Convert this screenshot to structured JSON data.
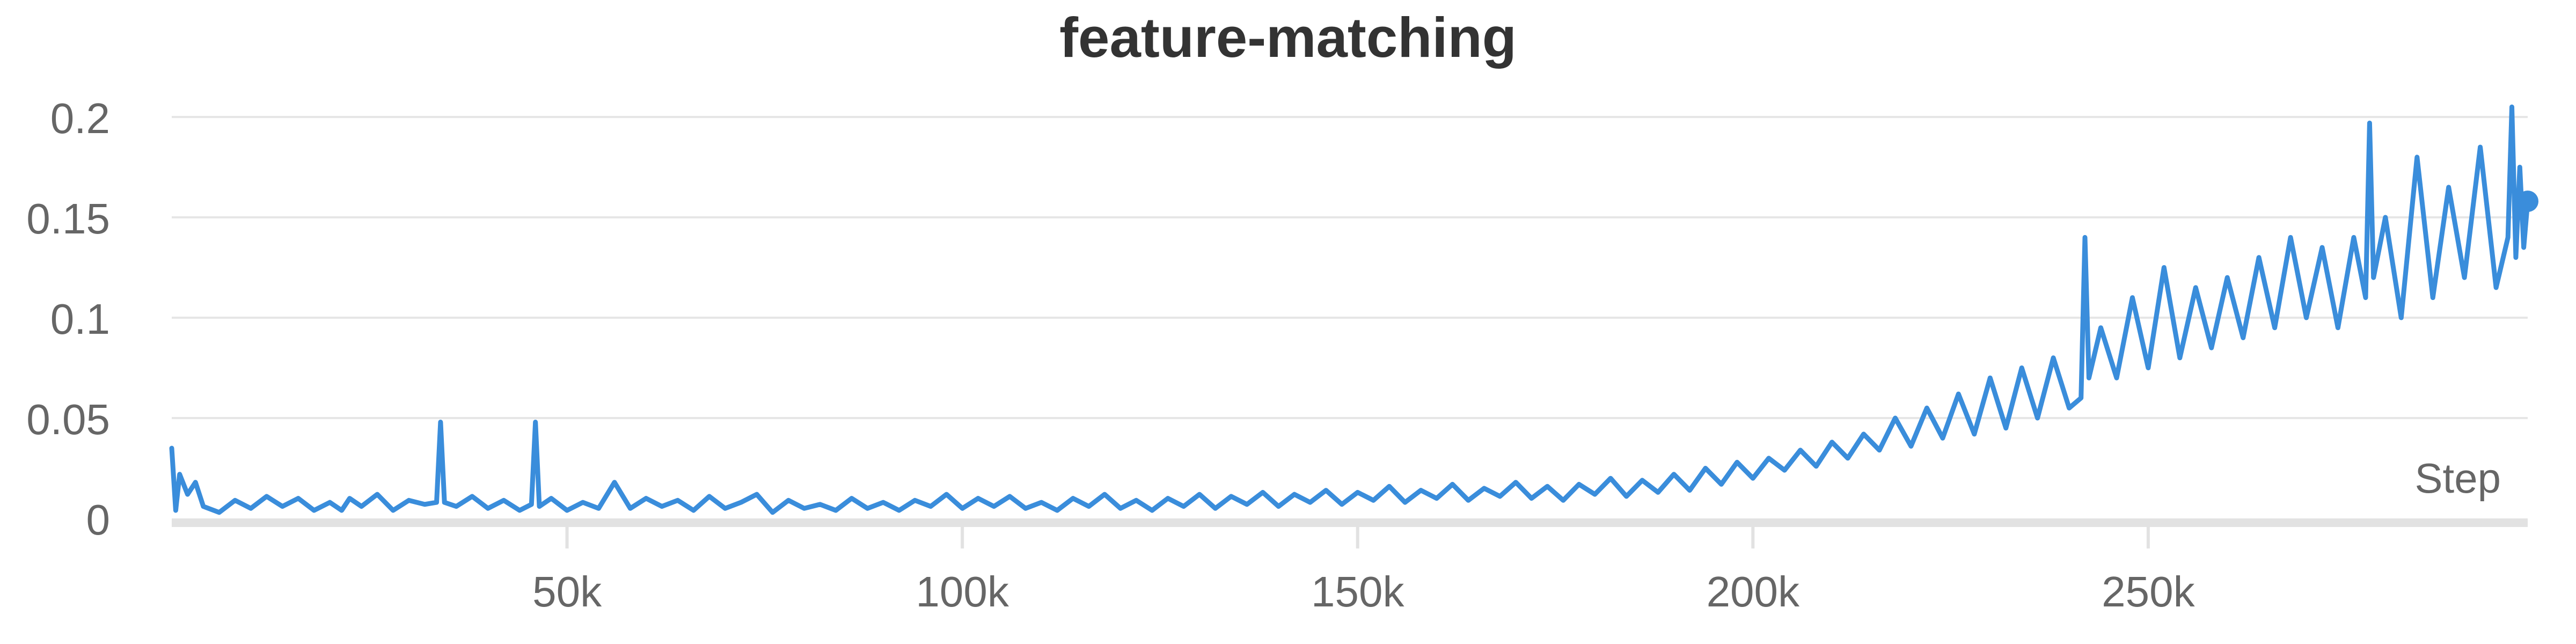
{
  "chart_data": {
    "type": "line",
    "title": "feature-matching",
    "xlabel": "Step",
    "ylabel": "",
    "xlim": [
      0,
      298000
    ],
    "ylim": [
      0,
      0.2
    ],
    "xticks": [
      50000,
      100000,
      150000,
      200000,
      250000
    ],
    "xtick_labels": [
      "50k",
      "100k",
      "150k",
      "200k",
      "250k"
    ],
    "yticks": [
      0,
      0.05,
      0.1,
      0.15,
      0.2
    ],
    "ytick_labels": [
      "0",
      "0.05",
      "0.1",
      "0.15",
      "0.2"
    ],
    "grid": true,
    "colors": {
      "line": "#3a8ddb",
      "grid": "#e6e6e6",
      "axis": "#e2e2e2",
      "text": "#666666",
      "title": "#333333"
    },
    "series": [
      {
        "values": [
          [
            0,
            0.035
          ],
          [
            500,
            0.004
          ],
          [
            1000,
            0.022
          ],
          [
            2000,
            0.012
          ],
          [
            3000,
            0.018
          ],
          [
            4000,
            0.006
          ],
          [
            6000,
            0.003
          ],
          [
            8000,
            0.009
          ],
          [
            10000,
            0.005
          ],
          [
            12000,
            0.011
          ],
          [
            14000,
            0.006
          ],
          [
            16000,
            0.01
          ],
          [
            18000,
            0.004
          ],
          [
            20000,
            0.008
          ],
          [
            21500,
            0.004
          ],
          [
            22500,
            0.01
          ],
          [
            24000,
            0.006
          ],
          [
            26000,
            0.012
          ],
          [
            28000,
            0.004
          ],
          [
            30000,
            0.009
          ],
          [
            32000,
            0.007
          ],
          [
            33500,
            0.008
          ],
          [
            34000,
            0.048
          ],
          [
            34500,
            0.008
          ],
          [
            36000,
            0.006
          ],
          [
            38000,
            0.011
          ],
          [
            40000,
            0.005
          ],
          [
            42000,
            0.009
          ],
          [
            44000,
            0.004
          ],
          [
            45500,
            0.007
          ],
          [
            46000,
            0.048
          ],
          [
            46500,
            0.006
          ],
          [
            48000,
            0.01
          ],
          [
            50000,
            0.004
          ],
          [
            52000,
            0.008
          ],
          [
            54000,
            0.005
          ],
          [
            56000,
            0.018
          ],
          [
            58000,
            0.005
          ],
          [
            60000,
            0.01
          ],
          [
            62000,
            0.006
          ],
          [
            64000,
            0.009
          ],
          [
            66000,
            0.004
          ],
          [
            68000,
            0.011
          ],
          [
            70000,
            0.005
          ],
          [
            72000,
            0.008
          ],
          [
            74000,
            0.012
          ],
          [
            76000,
            0.003
          ],
          [
            78000,
            0.009
          ],
          [
            80000,
            0.005
          ],
          [
            82000,
            0.007
          ],
          [
            84000,
            0.004
          ],
          [
            86000,
            0.01
          ],
          [
            88000,
            0.005
          ],
          [
            90000,
            0.008
          ],
          [
            92000,
            0.004
          ],
          [
            94000,
            0.009
          ],
          [
            96000,
            0.006
          ],
          [
            98000,
            0.012
          ],
          [
            100000,
            0.005
          ],
          [
            102000,
            0.01
          ],
          [
            104000,
            0.006
          ],
          [
            106000,
            0.011
          ],
          [
            108000,
            0.005
          ],
          [
            110000,
            0.008
          ],
          [
            112000,
            0.004
          ],
          [
            114000,
            0.01
          ],
          [
            116000,
            0.006
          ],
          [
            118000,
            0.012
          ],
          [
            120000,
            0.005
          ],
          [
            122000,
            0.009
          ],
          [
            124000,
            0.004
          ],
          [
            126000,
            0.01
          ],
          [
            128000,
            0.006
          ],
          [
            130000,
            0.012
          ],
          [
            132000,
            0.005
          ],
          [
            134000,
            0.011
          ],
          [
            136000,
            0.007
          ],
          [
            138000,
            0.013
          ],
          [
            140000,
            0.006
          ],
          [
            142000,
            0.012
          ],
          [
            144000,
            0.008
          ],
          [
            146000,
            0.014
          ],
          [
            148000,
            0.007
          ],
          [
            150000,
            0.013
          ],
          [
            152000,
            0.009
          ],
          [
            154000,
            0.016
          ],
          [
            156000,
            0.008
          ],
          [
            158000,
            0.014
          ],
          [
            160000,
            0.01
          ],
          [
            162000,
            0.017
          ],
          [
            164000,
            0.009
          ],
          [
            166000,
            0.015
          ],
          [
            168000,
            0.011
          ],
          [
            170000,
            0.018
          ],
          [
            172000,
            0.01
          ],
          [
            174000,
            0.016
          ],
          [
            176000,
            0.009
          ],
          [
            178000,
            0.017
          ],
          [
            180000,
            0.012
          ],
          [
            182000,
            0.02
          ],
          [
            184000,
            0.011
          ],
          [
            186000,
            0.019
          ],
          [
            188000,
            0.013
          ],
          [
            190000,
            0.022
          ],
          [
            192000,
            0.014
          ],
          [
            194000,
            0.025
          ],
          [
            196000,
            0.017
          ],
          [
            198000,
            0.028
          ],
          [
            200000,
            0.02
          ],
          [
            202000,
            0.03
          ],
          [
            204000,
            0.024
          ],
          [
            206000,
            0.034
          ],
          [
            208000,
            0.026
          ],
          [
            210000,
            0.038
          ],
          [
            212000,
            0.03
          ],
          [
            214000,
            0.042
          ],
          [
            216000,
            0.034
          ],
          [
            218000,
            0.05
          ],
          [
            220000,
            0.036
          ],
          [
            222000,
            0.055
          ],
          [
            224000,
            0.04
          ],
          [
            226000,
            0.062
          ],
          [
            228000,
            0.042
          ],
          [
            230000,
            0.07
          ],
          [
            232000,
            0.045
          ],
          [
            234000,
            0.075
          ],
          [
            236000,
            0.05
          ],
          [
            238000,
            0.08
          ],
          [
            240000,
            0.055
          ],
          [
            241500,
            0.06
          ],
          [
            242000,
            0.14
          ],
          [
            242500,
            0.07
          ],
          [
            244000,
            0.095
          ],
          [
            246000,
            0.07
          ],
          [
            248000,
            0.11
          ],
          [
            250000,
            0.075
          ],
          [
            252000,
            0.125
          ],
          [
            254000,
            0.08
          ],
          [
            256000,
            0.115
          ],
          [
            258000,
            0.085
          ],
          [
            260000,
            0.12
          ],
          [
            262000,
            0.09
          ],
          [
            264000,
            0.13
          ],
          [
            266000,
            0.095
          ],
          [
            268000,
            0.14
          ],
          [
            270000,
            0.1
          ],
          [
            272000,
            0.135
          ],
          [
            274000,
            0.095
          ],
          [
            276000,
            0.14
          ],
          [
            277500,
            0.11
          ],
          [
            278000,
            0.197
          ],
          [
            278500,
            0.12
          ],
          [
            280000,
            0.15
          ],
          [
            282000,
            0.1
          ],
          [
            284000,
            0.18
          ],
          [
            286000,
            0.11
          ],
          [
            288000,
            0.165
          ],
          [
            290000,
            0.12
          ],
          [
            292000,
            0.185
          ],
          [
            294000,
            0.115
          ],
          [
            295500,
            0.14
          ],
          [
            296000,
            0.205
          ],
          [
            296500,
            0.13
          ],
          [
            297000,
            0.175
          ],
          [
            297500,
            0.135
          ],
          [
            298000,
            0.158
          ]
        ],
        "end_marker": true
      }
    ]
  }
}
